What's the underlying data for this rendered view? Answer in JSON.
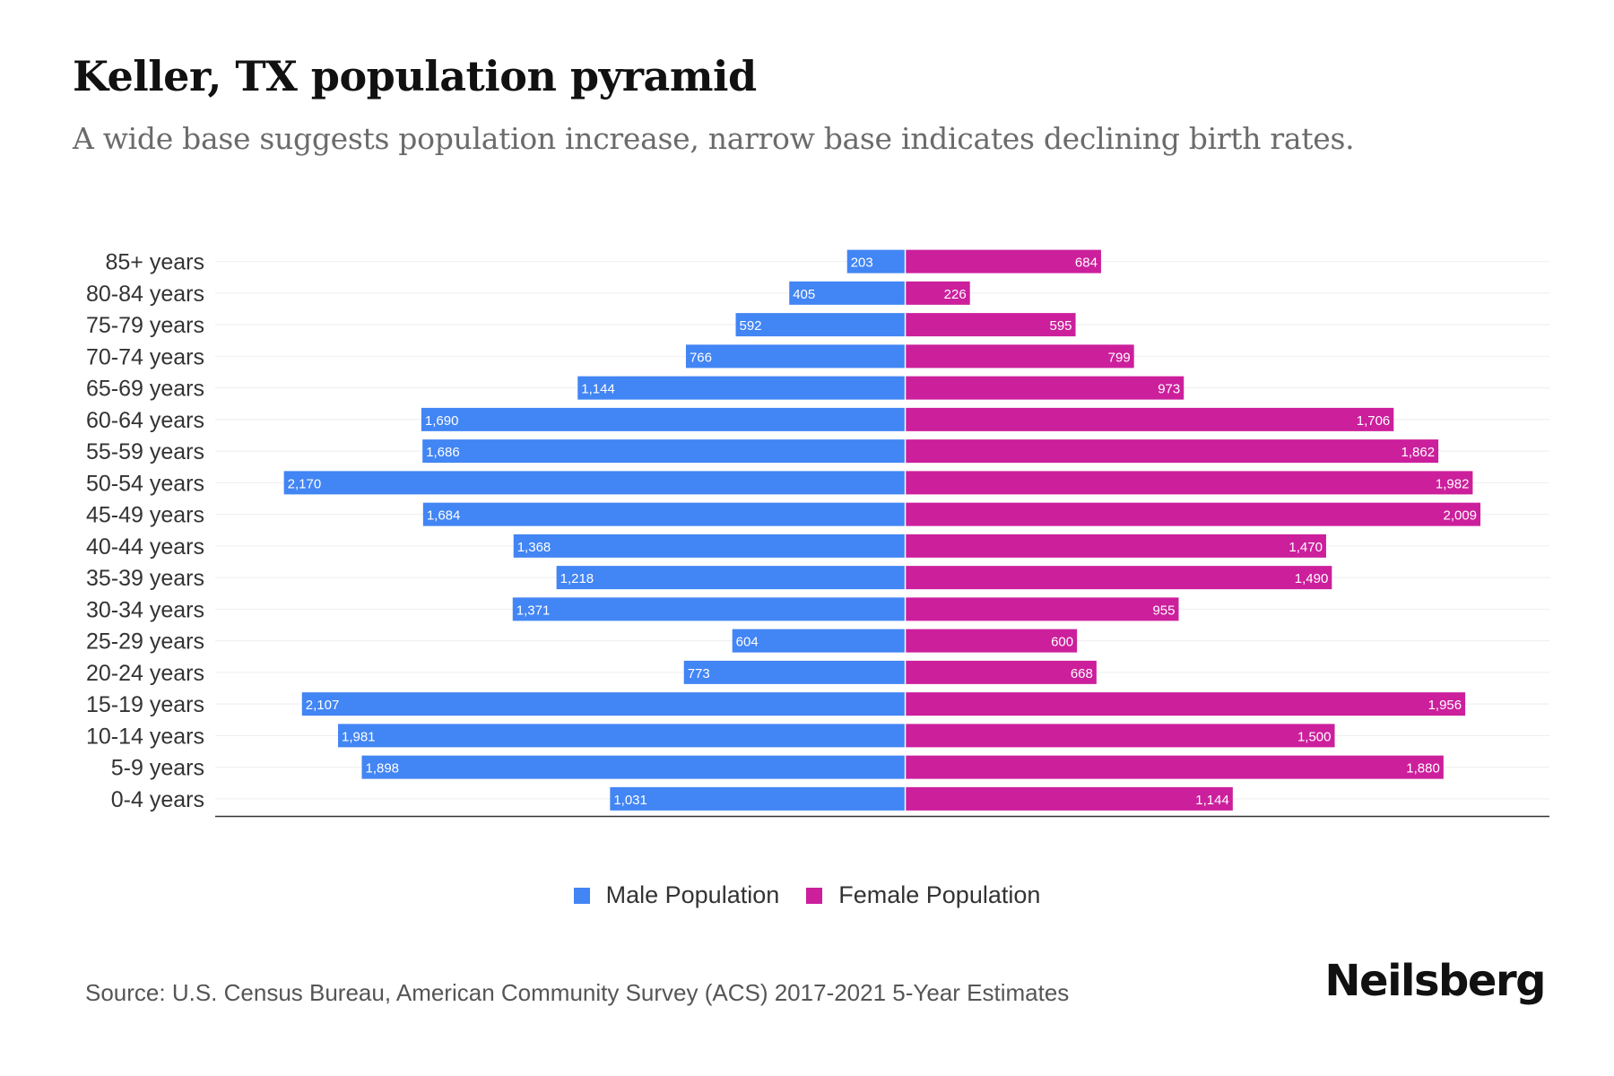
{
  "header": {
    "title": "Keller, TX population pyramid",
    "subtitle": "A wide base suggests population increase, narrow base indicates declining birth rates."
  },
  "legend": {
    "male_label": "Male Population",
    "female_label": "Female Population"
  },
  "footer": {
    "source": "Source: U.S. Census Bureau, American Community Survey (ACS) 2017-2021 5-Year Estimates",
    "brand": "Neilsberg"
  },
  "colors": {
    "male": "#4285f4",
    "female": "#cc1f9c",
    "gridline": "#eeeeee",
    "axis": "#333333"
  },
  "chart_data": {
    "type": "bar",
    "orientation": "horizontal",
    "layout": "population-pyramid",
    "categories": [
      "85+ years",
      "80-84 years",
      "75-79 years",
      "70-74 years",
      "65-69 years",
      "60-64 years",
      "55-59 years",
      "50-54 years",
      "45-49 years",
      "40-44 years",
      "35-39 years",
      "30-34 years",
      "25-29 years",
      "20-24 years",
      "15-19 years",
      "10-14 years",
      "5-9 years",
      "0-4 years"
    ],
    "series": [
      {
        "name": "Male Population",
        "side": "left",
        "values": [
          203,
          405,
          592,
          766,
          1144,
          1690,
          1686,
          2170,
          1684,
          1368,
          1218,
          1371,
          604,
          773,
          2107,
          1981,
          1898,
          1031
        ],
        "labels": [
          "203",
          "405",
          "592",
          "766",
          "1,144",
          "1,690",
          "1,686",
          "2,170",
          "1,684",
          "1,368",
          "1,218",
          "1,371",
          "604",
          "773",
          "2,107",
          "1,981",
          "1,898",
          "1,031"
        ]
      },
      {
        "name": "Female Population",
        "side": "right",
        "values": [
          684,
          226,
          595,
          799,
          973,
          1706,
          1862,
          1982,
          2009,
          1470,
          1490,
          955,
          600,
          668,
          1956,
          1500,
          1880,
          1144
        ],
        "labels": [
          "684",
          "226",
          "595",
          "799",
          "973",
          "1,706",
          "1,862",
          "1,982",
          "2,009",
          "1,470",
          "1,490",
          "955",
          "600",
          "668",
          "1,956",
          "1,500",
          "1,880",
          "1,144"
        ]
      }
    ],
    "xlim": [
      -2410,
      2250
    ],
    "grid": true,
    "legend_position": "bottom"
  }
}
